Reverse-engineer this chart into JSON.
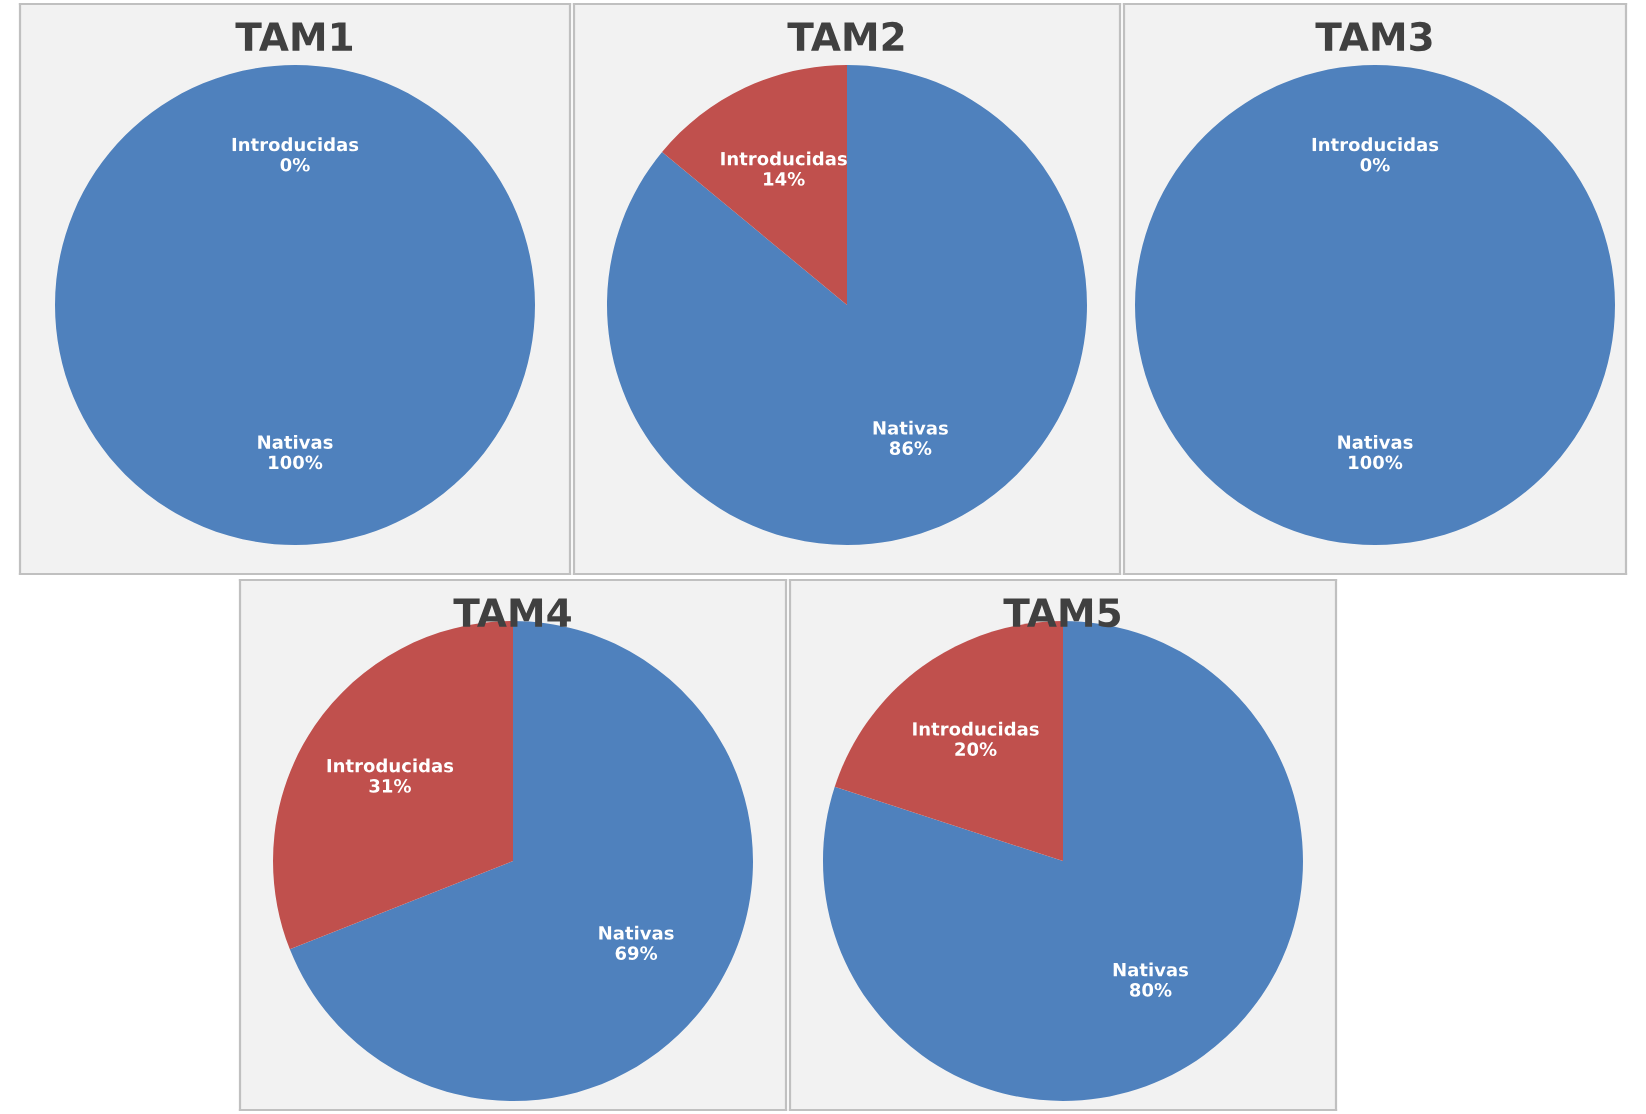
{
  "chart_data": [
    {
      "type": "pie",
      "title": "TAM1",
      "categories": [
        "Nativas",
        "Introducidas"
      ],
      "values": [
        100,
        0
      ],
      "value_labels": [
        "100%",
        "0%"
      ],
      "colors": [
        "#4f81bd",
        "#c0504d"
      ]
    },
    {
      "type": "pie",
      "title": "TAM2",
      "categories": [
        "Nativas",
        "Introducidas"
      ],
      "values": [
        86,
        14
      ],
      "value_labels": [
        "86%",
        "14%"
      ],
      "colors": [
        "#4f81bd",
        "#c0504d"
      ]
    },
    {
      "type": "pie",
      "title": "TAM3",
      "categories": [
        "Nativas",
        "Introducidas"
      ],
      "values": [
        100,
        0
      ],
      "value_labels": [
        "100%",
        "0%"
      ],
      "colors": [
        "#4f81bd",
        "#c0504d"
      ]
    },
    {
      "type": "pie",
      "title": "TAM4",
      "categories": [
        "Nativas",
        "Introducidas"
      ],
      "values": [
        69,
        31
      ],
      "value_labels": [
        "69%",
        "31%"
      ],
      "colors": [
        "#4f81bd",
        "#c0504d"
      ]
    },
    {
      "type": "pie",
      "title": "TAM5",
      "categories": [
        "Nativas",
        "Introducidas"
      ],
      "values": [
        80,
        20
      ],
      "value_labels": [
        "80%",
        "20%"
      ],
      "colors": [
        "#4f81bd",
        "#c0504d"
      ]
    }
  ]
}
